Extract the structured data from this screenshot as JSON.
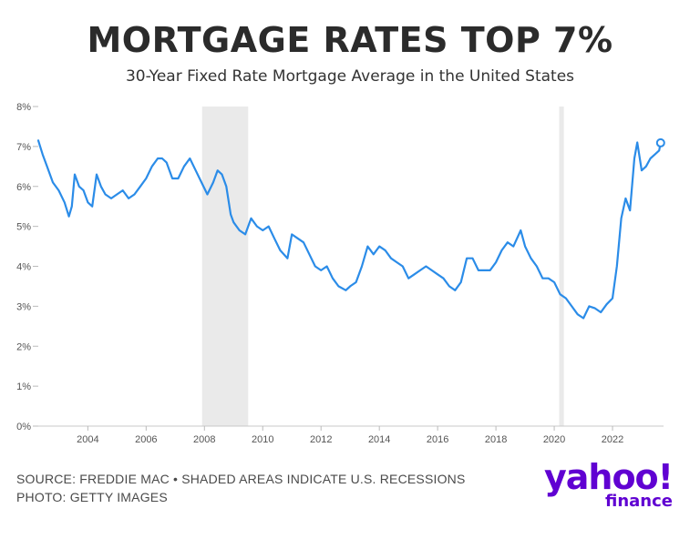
{
  "header": {
    "title": "MORTGAGE RATES TOP 7%",
    "subtitle": "30-Year Fixed Rate Mortgage Average in the United States"
  },
  "footer": {
    "source": "SOURCE: FREDDIE MAC • SHADED AREAS INDICATE U.S. RECESSIONS",
    "photo": "PHOTO: GETTY IMAGES"
  },
  "logo": {
    "main": "yahoo!",
    "sub": "finance"
  },
  "colors": {
    "line": "#2b8ce8",
    "recession": "#e6e6e6",
    "logo": "#6001d2"
  },
  "chart_data": {
    "type": "line",
    "title": "MORTGAGE RATES TOP 7%",
    "subtitle": "30-Year Fixed Rate Mortgage Average in the United States",
    "xlabel": "",
    "ylabel": "",
    "ylim": [
      0,
      8
    ],
    "xlim": [
      2002.3,
      2023.75
    ],
    "y_ticks": [
      "0%",
      "1%",
      "2%",
      "3%",
      "4%",
      "5%",
      "6%",
      "7%",
      "8%"
    ],
    "x_ticks": [
      "2004",
      "2006",
      "2008",
      "2010",
      "2012",
      "2014",
      "2016",
      "2018",
      "2020",
      "2022"
    ],
    "grid": false,
    "recessions": [
      [
        2007.92,
        2009.5
      ],
      [
        2020.17,
        2020.33
      ]
    ],
    "highlight_last_point": true,
    "series": [
      {
        "x": [
          2002.3,
          2002.45,
          2002.6,
          2002.8,
          2003.0,
          2003.2,
          2003.35,
          2003.45,
          2003.55,
          2003.7,
          2003.85,
          2004.0,
          2004.15,
          2004.3,
          2004.45,
          2004.6,
          2004.8,
          2005.0,
          2005.2,
          2005.4,
          2005.6,
          2005.8,
          2006.0,
          2006.2,
          2006.4,
          2006.55,
          2006.7,
          2006.9,
          2007.1,
          2007.3,
          2007.5,
          2007.7,
          2007.9,
          2008.1,
          2008.3,
          2008.45,
          2008.6,
          2008.75,
          2008.9,
          2009.0,
          2009.2,
          2009.4,
          2009.6,
          2009.8,
          2010.0,
          2010.2,
          2010.4,
          2010.6,
          2010.85,
          2011.0,
          2011.2,
          2011.4,
          2011.6,
          2011.8,
          2012.0,
          2012.2,
          2012.4,
          2012.6,
          2012.85,
          2013.0,
          2013.2,
          2013.4,
          2013.6,
          2013.8,
          2014.0,
          2014.2,
          2014.4,
          2014.6,
          2014.8,
          2015.0,
          2015.2,
          2015.4,
          2015.6,
          2015.8,
          2016.0,
          2016.2,
          2016.4,
          2016.6,
          2016.8,
          2017.0,
          2017.2,
          2017.4,
          2017.6,
          2017.8,
          2018.0,
          2018.2,
          2018.4,
          2018.6,
          2018.85,
          2019.0,
          2019.2,
          2019.4,
          2019.6,
          2019.8,
          2020.0,
          2020.2,
          2020.4,
          2020.6,
          2020.8,
          2021.0,
          2021.2,
          2021.4,
          2021.6,
          2021.8,
          2022.0,
          2022.15,
          2022.3,
          2022.45,
          2022.6,
          2022.75,
          2022.85,
          2023.0,
          2023.15,
          2023.3,
          2023.45,
          2023.6,
          2023.65
        ],
        "y": [
          7.15,
          6.8,
          6.5,
          6.1,
          5.9,
          5.6,
          5.25,
          5.5,
          6.3,
          6.0,
          5.9,
          5.6,
          5.5,
          6.3,
          6.0,
          5.8,
          5.7,
          5.8,
          5.9,
          5.7,
          5.8,
          6.0,
          6.2,
          6.5,
          6.7,
          6.7,
          6.6,
          6.2,
          6.2,
          6.5,
          6.7,
          6.4,
          6.1,
          5.8,
          6.1,
          6.4,
          6.3,
          6.0,
          5.3,
          5.1,
          4.9,
          4.8,
          5.2,
          5.0,
          4.9,
          5.0,
          4.7,
          4.4,
          4.2,
          4.8,
          4.7,
          4.6,
          4.3,
          4.0,
          3.9,
          4.0,
          3.7,
          3.5,
          3.4,
          3.5,
          3.6,
          4.0,
          4.5,
          4.3,
          4.5,
          4.4,
          4.2,
          4.1,
          4.0,
          3.7,
          3.8,
          3.9,
          4.0,
          3.9,
          3.8,
          3.7,
          3.5,
          3.4,
          3.6,
          4.2,
          4.2,
          3.9,
          3.9,
          3.9,
          4.1,
          4.4,
          4.6,
          4.5,
          4.9,
          4.5,
          4.2,
          4.0,
          3.7,
          3.7,
          3.6,
          3.3,
          3.2,
          3.0,
          2.8,
          2.7,
          3.0,
          2.95,
          2.85,
          3.05,
          3.2,
          4.0,
          5.2,
          5.7,
          5.4,
          6.7,
          7.1,
          6.4,
          6.5,
          6.7,
          6.8,
          6.9,
          7.09
        ]
      }
    ]
  }
}
